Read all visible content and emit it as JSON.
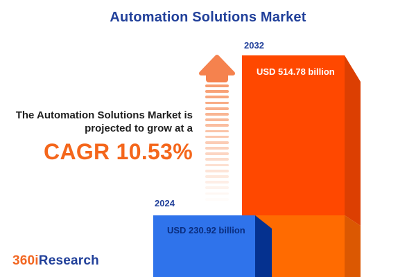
{
  "title": "Automation Solutions Market",
  "description": {
    "line1": "The Automation Solutions Market is",
    "line2": "projected to grow at a",
    "cagr": "CAGR 10.53%"
  },
  "chart_data": {
    "type": "bar",
    "title": "Automation Solutions Market",
    "categories": [
      "2024",
      "2032"
    ],
    "values": [
      230.92,
      514.78
    ],
    "unit": "USD billion",
    "value_labels": [
      "USD 230.92 billion",
      "USD 514.78 billion"
    ],
    "cagr_percent": 10.53,
    "legend_position": "none",
    "grid": false,
    "style": "3d-infographic-bars-with-growth-arrow"
  },
  "bars": {
    "b2024": {
      "year": "2024",
      "value_label": "USD 230.92 billion"
    },
    "b2032": {
      "year": "2032",
      "value_label": "USD 514.78 billion"
    }
  },
  "logo": {
    "prefix": "360i",
    "suffix": "Research"
  },
  "colors": {
    "title_blue": "#21409A",
    "body_text": "#1E1E1E",
    "cagr_orange": "#F4661B",
    "orange_bar_main": "#FF4800",
    "orange_bar_side": "#DC3F02",
    "orange_bar_overlap_main": "#FF6B01",
    "orange_bar_overlap_side": "#DB5802",
    "blue_bar_main": "#2F73EB",
    "blue_bar_side": "#05318F",
    "blue_bar_text": "#0A2D7E",
    "white_text": "#FFFFFF",
    "arrow_head": "#F5824E",
    "arrow_stripe": "#F79A6B",
    "logo_orange": "#F26722",
    "logo_blue": "#21409A"
  }
}
